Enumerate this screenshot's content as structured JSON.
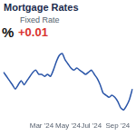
{
  "chart_data": {
    "type": "line",
    "title": "Mortgage Rates",
    "subtitle": "Fixed Rate",
    "annotations": [
      "%",
      "+0.01"
    ],
    "categories": [
      null,
      null,
      null,
      null,
      null,
      null,
      null,
      null,
      null,
      null,
      null,
      null,
      null,
      "Mar '24",
      null,
      null,
      null,
      null,
      null,
      null,
      null,
      null,
      "May '24",
      null,
      null,
      null,
      null,
      null,
      null,
      null,
      "Jul '24",
      null,
      null,
      null,
      null,
      null,
      null,
      null,
      null,
      "Sep '24",
      null,
      null,
      null,
      null,
      null
    ],
    "values": [
      7.0,
      6.9,
      6.8,
      6.7,
      6.6,
      6.7,
      6.8,
      6.7,
      6.8,
      6.9,
      7.0,
      7.05,
      6.95,
      6.95,
      6.9,
      6.95,
      6.9,
      7.05,
      7.25,
      7.4,
      7.45,
      7.3,
      7.2,
      7.1,
      7.05,
      7.1,
      7.05,
      7.0,
      6.95,
      7.0,
      7.05,
      6.95,
      6.85,
      6.7,
      6.5,
      6.45,
      6.4,
      6.45,
      6.4,
      6.3,
      6.15,
      6.1,
      6.2,
      6.35,
      6.6
    ],
    "color": "#2a55a8",
    "ylim": [
      5.9,
      7.6
    ],
    "grid": false,
    "tick_labels": "x"
  }
}
